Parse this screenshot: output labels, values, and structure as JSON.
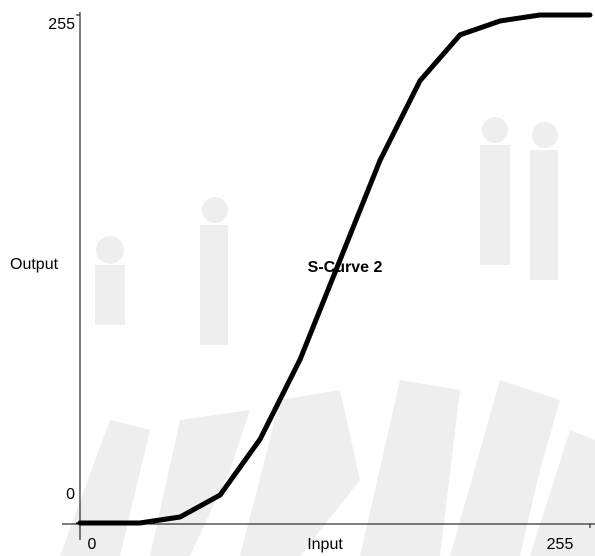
{
  "chart_data": {
    "type": "line",
    "title": "S-Curve 2",
    "x_label": "Input",
    "y_label": "Output",
    "x": [
      0,
      30,
      50,
      70,
      90,
      110,
      130,
      150,
      170,
      190,
      210,
      230,
      255
    ],
    "series": [
      {
        "name": "S-Curve 2",
        "color": "#000000",
        "values": [
          0,
          0,
          3,
          14,
          42,
          82,
          132,
          182,
          222,
          245,
          252,
          255,
          255
        ]
      }
    ],
    "xlim": [
      0,
      255
    ],
    "ylim": [
      0,
      255
    ],
    "xticks": [
      0,
      255
    ],
    "yticks": [
      0,
      255
    ]
  }
}
